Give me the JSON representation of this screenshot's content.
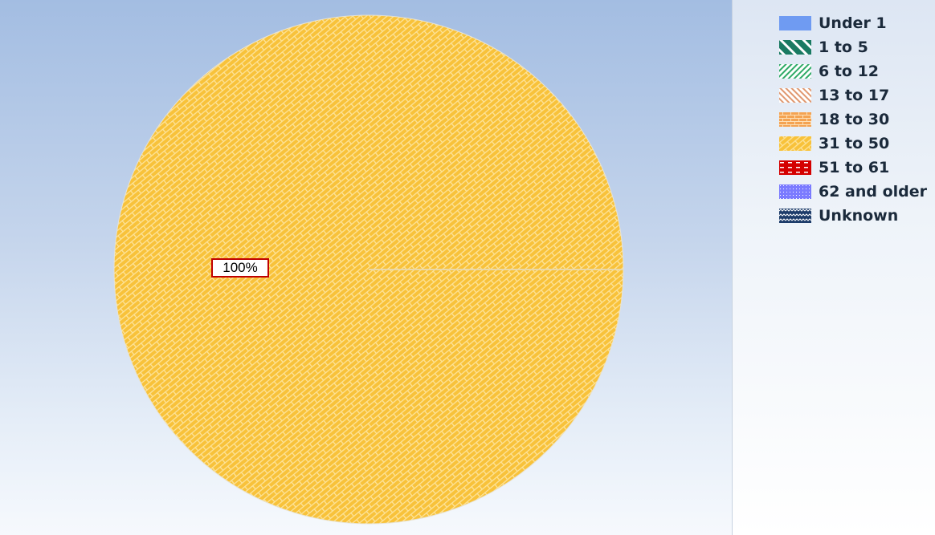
{
  "chart_data": {
    "type": "pie",
    "title": "",
    "categories": [
      "Under 1",
      "1 to 5",
      "6 to 12",
      "13 to 17",
      "18 to 30",
      "31 to 50",
      "51 to 61",
      "62 and older",
      "Unknown"
    ],
    "values": [
      0,
      0,
      0,
      0,
      0,
      100,
      0,
      0,
      0
    ],
    "slice_labels": [
      "100%"
    ],
    "legend_position": "right",
    "colors": [
      "#6f9bf2",
      "#1a7a62",
      "#2eaa66",
      "#e09870",
      "#f4a352",
      "#f8c23a",
      "#d40000",
      "#7b7bff",
      "#1d3c6a"
    ]
  },
  "legend": {
    "items": [
      {
        "label": "Under 1",
        "pattern": "solid",
        "color": "#6f9bf2"
      },
      {
        "label": "1 to 5",
        "pattern": "wide-diagonal",
        "color": "#1a7a62"
      },
      {
        "label": "6 to 12",
        "pattern": "backward-diagonal",
        "color": "#2eaa66"
      },
      {
        "label": "13 to 17",
        "pattern": "forward-diagonal",
        "color": "#e09870"
      },
      {
        "label": "18 to 30",
        "pattern": "brick",
        "color": "#f4a352"
      },
      {
        "label": "31 to 50",
        "pattern": "diagonal-brick",
        "color": "#f8c23a"
      },
      {
        "label": "51 to 61",
        "pattern": "dashed",
        "color": "#d40000"
      },
      {
        "label": "62 and older",
        "pattern": "dotted",
        "color": "#7b7bff"
      },
      {
        "label": "Unknown",
        "pattern": "wave",
        "color": "#1d3c6a"
      }
    ]
  }
}
